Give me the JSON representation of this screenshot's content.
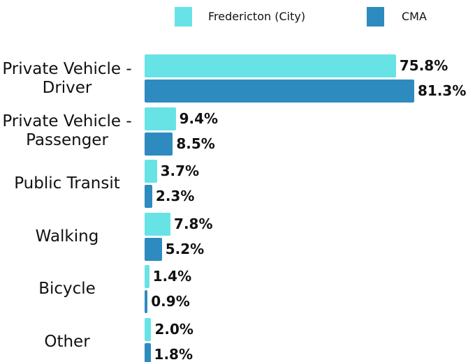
{
  "chart_data": {
    "type": "bar",
    "orientation": "horizontal",
    "categories": [
      "Private Vehicle - Driver",
      "Private Vehicle - Passenger",
      "Public Transit",
      "Walking",
      "Bicycle",
      "Other"
    ],
    "series": [
      {
        "name": "Fredericton (City)",
        "color": "#67e3e6",
        "values": [
          75.8,
          9.4,
          3.7,
          7.8,
          1.4,
          2.0
        ],
        "value_labels": [
          "75.8%",
          "9.4%",
          "3.7%",
          "7.8%",
          "1.4%",
          "2.0%"
        ]
      },
      {
        "name": "CMA",
        "color": "#2e8bbf",
        "values": [
          81.3,
          8.5,
          2.3,
          5.2,
          0.9,
          1.8
        ],
        "value_labels": [
          "81.3%",
          "8.5%",
          "2.3%",
          "5.2%",
          "0.9%",
          "1.8%"
        ]
      }
    ],
    "legend": "top"
  }
}
